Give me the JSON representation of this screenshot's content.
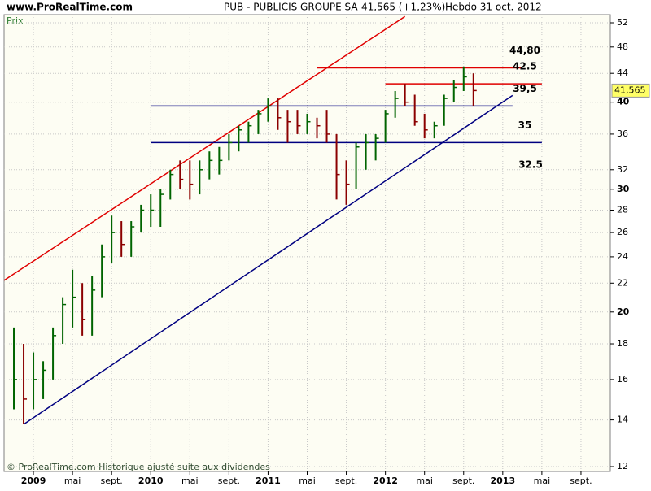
{
  "chart_data": {
    "type": "bar_ohlc",
    "site": "www.ProRealTime.com",
    "title": "PUB - PUBLICIS GROUPE SA",
    "quote": "41,565 (+1,23%)",
    "period": "Hebdo  31 oct. 2012",
    "y_label": "Prix",
    "footer": "© ProRealTime.com Historique ajusté suite aux dividendes",
    "last_label": "41,565",
    "log_scale": true,
    "grid": true,
    "up_color": "#006400",
    "down_color": "#8b0000",
    "xlim": [
      "2008-10",
      "2013-12"
    ],
    "ylim": [
      12,
      52
    ],
    "yticks": [
      12,
      14,
      16,
      18,
      20,
      22,
      24,
      26,
      28,
      30,
      32,
      36,
      40,
      44,
      48,
      52
    ],
    "xticks": [
      {
        "value": "2009-01",
        "label": "2009"
      },
      {
        "value": "2009-05",
        "label": "mai"
      },
      {
        "value": "2009-09",
        "label": "sept."
      },
      {
        "value": "2010-01",
        "label": "2010"
      },
      {
        "value": "2010-05",
        "label": "mai"
      },
      {
        "value": "2010-09",
        "label": "sept."
      },
      {
        "value": "2011-01",
        "label": "2011"
      },
      {
        "value": "2011-05",
        "label": "mai"
      },
      {
        "value": "2011-09",
        "label": "sept."
      },
      {
        "value": "2012-01",
        "label": "2012"
      },
      {
        "value": "2012-05",
        "label": "mai"
      },
      {
        "value": "2012-09",
        "label": "sept."
      },
      {
        "value": "2013-01",
        "label": "2013"
      },
      {
        "value": "2013-05",
        "label": "mai"
      },
      {
        "value": "2013-09",
        "label": "sept."
      }
    ],
    "x": [
      "2008-11",
      "2008-12",
      "2009-01",
      "2009-02",
      "2009-03",
      "2009-04",
      "2009-05",
      "2009-06",
      "2009-07",
      "2009-08",
      "2009-09",
      "2009-10",
      "2009-11",
      "2009-12",
      "2010-01",
      "2010-02",
      "2010-03",
      "2010-04",
      "2010-05",
      "2010-06",
      "2010-07",
      "2010-08",
      "2010-09",
      "2010-10",
      "2010-11",
      "2010-12",
      "2011-01",
      "2011-02",
      "2011-03",
      "2011-04",
      "2011-05",
      "2011-06",
      "2011-07",
      "2011-08",
      "2011-09",
      "2011-10",
      "2011-11",
      "2011-12",
      "2012-01",
      "2012-02",
      "2012-03",
      "2012-04",
      "2012-05",
      "2012-06",
      "2012-07",
      "2012-08",
      "2012-09",
      "2012-10"
    ],
    "high": [
      19,
      18,
      17.5,
      17,
      19,
      21,
      23,
      22,
      22.5,
      25,
      27.5,
      27,
      27,
      28.5,
      29.5,
      30,
      32,
      33,
      33,
      33,
      34,
      34.5,
      36,
      37,
      37.5,
      39,
      40.5,
      40.5,
      39,
      39,
      38.5,
      38,
      39,
      36,
      33,
      35,
      36,
      36,
      39,
      41.5,
      42.5,
      41,
      38.5,
      37.5,
      41,
      43,
      45,
      44
    ],
    "low": [
      14.5,
      13.8,
      14.5,
      15,
      16,
      18,
      19,
      18.5,
      18.5,
      21,
      23.5,
      24,
      24,
      26,
      26.5,
      26.5,
      29,
      30,
      29,
      29.5,
      31,
      31.5,
      33,
      34,
      35,
      36,
      37.5,
      36.5,
      35,
      36,
      36,
      35.5,
      35,
      29,
      28.5,
      30,
      32,
      33,
      35,
      38,
      39.5,
      37,
      35.5,
      35.5,
      37,
      40,
      41.5,
      39.5
    ],
    "close": [
      16,
      15,
      16,
      16.5,
      18.5,
      20.5,
      21,
      19.5,
      21.5,
      24,
      26,
      25,
      26.5,
      28,
      28,
      29.5,
      31.5,
      31,
      30.5,
      32,
      33,
      33,
      35,
      36.5,
      37,
      38.5,
      39.5,
      38,
      37.5,
      37,
      37.5,
      37,
      36,
      31.5,
      30.5,
      34.5,
      35,
      35.5,
      38.5,
      40.5,
      40,
      37.5,
      36.5,
      37,
      40.5,
      42,
      43.5,
      41.565
    ],
    "levels": [
      {
        "value": 44.8,
        "label": "44,80",
        "color": "#e00000",
        "start": "2011-06",
        "end": "2013-03"
      },
      {
        "value": 42.5,
        "label": "42.5",
        "color": "#e00000",
        "start": "2012-01",
        "end": "2013-05"
      },
      {
        "value": 39.5,
        "label": "39,5",
        "color": "#000080",
        "start": "2010-01",
        "end": "2013-02"
      },
      {
        "value": 35,
        "label": "35",
        "color": "#000080",
        "start": "2010-01",
        "end": "2013-05"
      }
    ],
    "notes": [
      {
        "value": 32.5,
        "label": "32.5"
      }
    ],
    "trendlines": [
      {
        "color": "#e00000",
        "x": [
          "2008-10",
          "2012-03"
        ],
        "y": [
          22.2,
          53.1
        ]
      },
      {
        "color": "#000080",
        "x": [
          "2008-12",
          "2013-02"
        ],
        "y": [
          13.8,
          40.9
        ]
      }
    ]
  }
}
